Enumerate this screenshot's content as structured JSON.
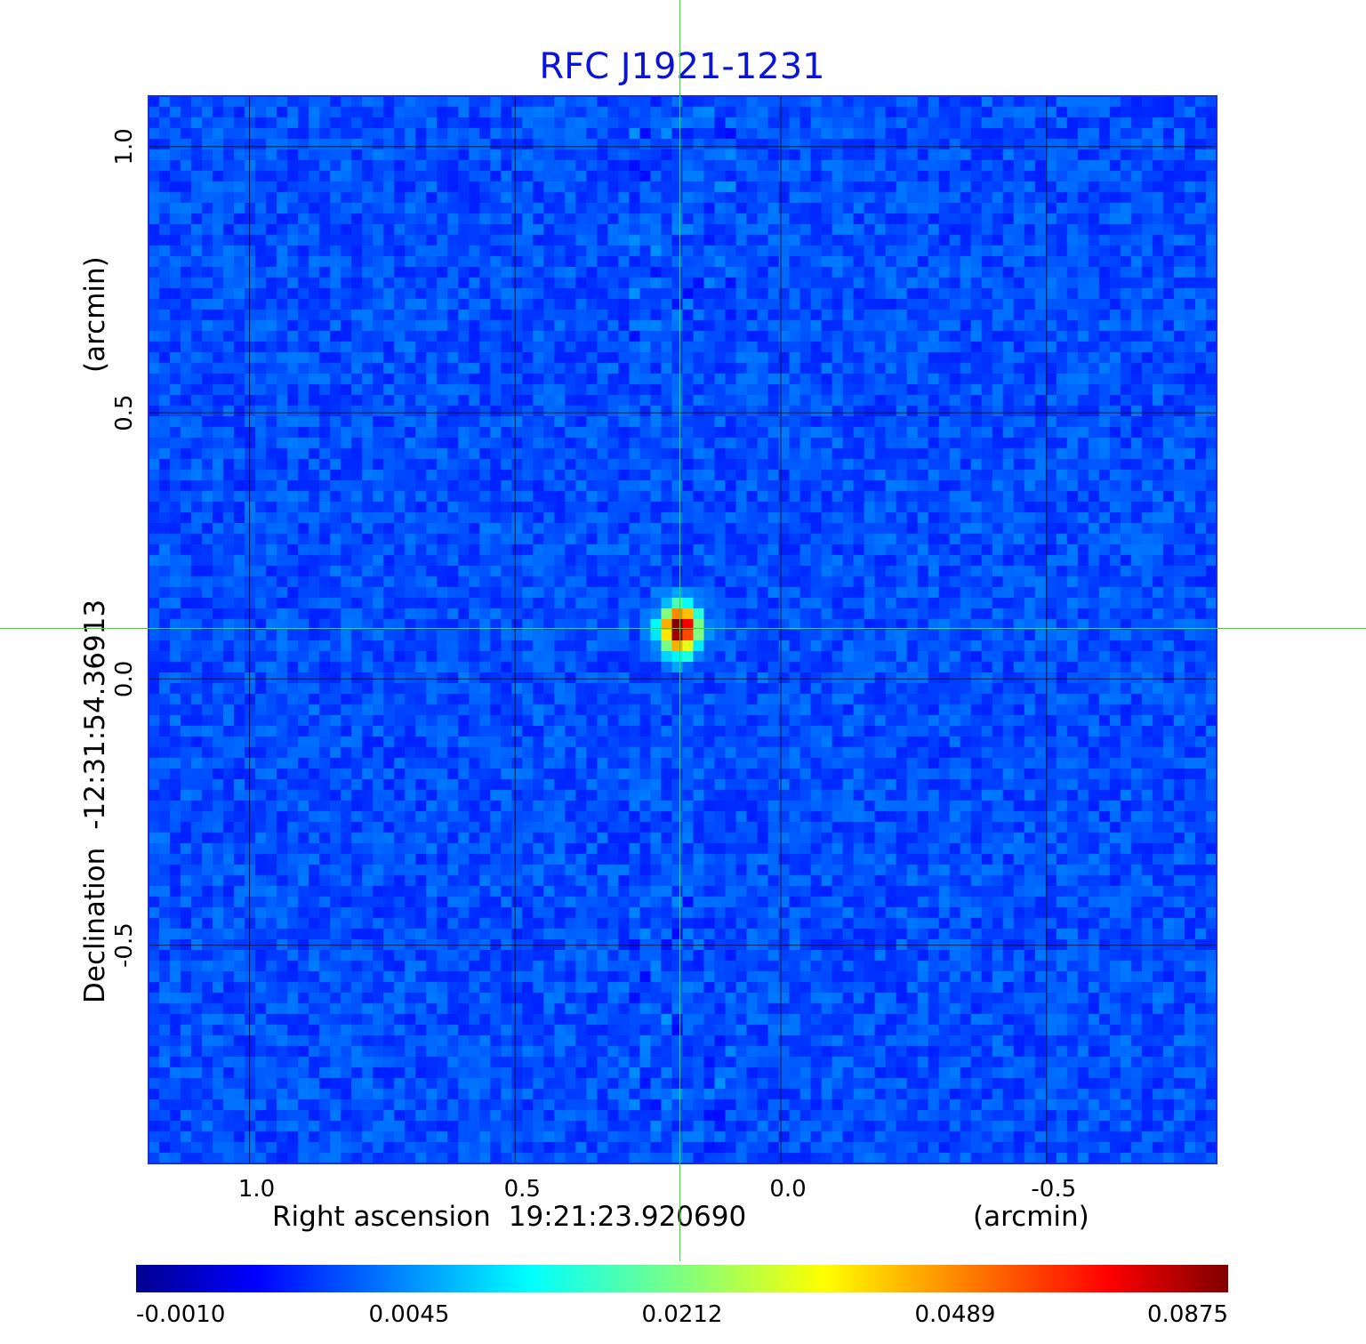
{
  "chart_data": {
    "type": "heatmap",
    "title": "RFC J1921-1231",
    "colormap": "jet",
    "x_axis": {
      "label": "Right ascension",
      "center": "19:21:23.920690",
      "unit": "(arcmin)",
      "ticks": [
        1.0,
        0.5,
        0.0,
        -0.5
      ],
      "tick_labels": [
        "1.0",
        "0.5",
        "0.0",
        "-0.5"
      ],
      "range": [
        1.19,
        -0.82
      ],
      "direction": "decreasing-left-to-right"
    },
    "y_axis": {
      "label": "Declination",
      "center": "-12:31:54.36913",
      "unit": "(arcmin)",
      "ticks": [
        1.0,
        0.5,
        0.0,
        -0.5
      ],
      "tick_labels": [
        "1.0",
        "0.5",
        "0.0",
        "-0.5"
      ],
      "range": [
        -0.91,
        1.095
      ]
    },
    "grid": true,
    "source": {
      "x_arcmin": 0.19,
      "y_arcmin": 0.095,
      "peak": 0.0875
    },
    "crosshair": {
      "x_arcmin": 0.19,
      "y_arcmin": 0.095,
      "color": "#33dd33"
    },
    "colorbar": {
      "orientation": "horizontal",
      "tick_labels": [
        "-0.0010",
        "0.0045",
        "0.0212",
        "0.0489",
        "0.0875"
      ],
      "min": -0.001,
      "max": 0.0875
    },
    "background_level": 0.002
  }
}
